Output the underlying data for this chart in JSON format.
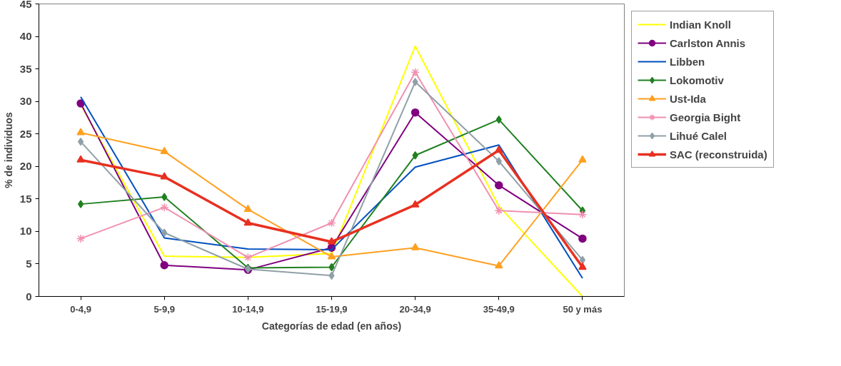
{
  "chart_data": {
    "type": "line",
    "xlabel": "Categorías de edad (en años)",
    "ylabel": "% de individuos",
    "categories": [
      "0-4,9",
      "5-9,9",
      "10-14,9",
      "15-19,9",
      "20-34,9",
      "35-49,9",
      "50 y más"
    ],
    "ylim": [
      0,
      45
    ],
    "yticks": [
      0,
      5,
      10,
      15,
      20,
      25,
      30,
      35,
      40,
      45
    ],
    "grid": false,
    "legend": "right",
    "line_style": "solid",
    "series": [
      {
        "name": "Indian Knoll",
        "color": "#ffff00",
        "marker": "none",
        "values": [
          29.5,
          6.2,
          6.0,
          6.6,
          38.5,
          13.9,
          0
        ]
      },
      {
        "name": "Carlston Annis",
        "color": "#800080",
        "marker": "circle",
        "values": [
          29.7,
          4.8,
          4.1,
          7.5,
          28.3,
          17.1,
          8.9
        ]
      },
      {
        "name": "Libben",
        "color": "#0050c0",
        "marker": "none",
        "values": [
          30.7,
          9.0,
          7.3,
          7.2,
          19.9,
          23.3,
          2.8
        ]
      },
      {
        "name": "Lokomotiv",
        "color": "#208020",
        "marker": "diamond",
        "values": [
          14.2,
          15.3,
          4.4,
          4.5,
          21.7,
          27.2,
          13.2
        ]
      },
      {
        "name": "Ust-Ida",
        "color": "#ffa020",
        "marker": "triangle",
        "values": [
          25.2,
          22.3,
          13.4,
          6.1,
          7.5,
          4.7,
          21.0
        ]
      },
      {
        "name": "Georgia Bight",
        "color": "#f090b0",
        "marker": "cross",
        "values": [
          8.9,
          13.7,
          6.0,
          11.3,
          34.5,
          13.2,
          12.6
        ]
      },
      {
        "name": "Lihué Calel",
        "color": "#90a0a8",
        "marker": "diamond",
        "values": [
          23.8,
          9.8,
          4.2,
          3.2,
          33.0,
          20.8,
          5.6
        ]
      },
      {
        "name": "SAC (reconstruida)",
        "color": "#e83020",
        "marker": "triangle",
        "values": [
          21.0,
          18.4,
          11.3,
          8.4,
          14.1,
          22.5,
          4.5
        ]
      }
    ]
  }
}
